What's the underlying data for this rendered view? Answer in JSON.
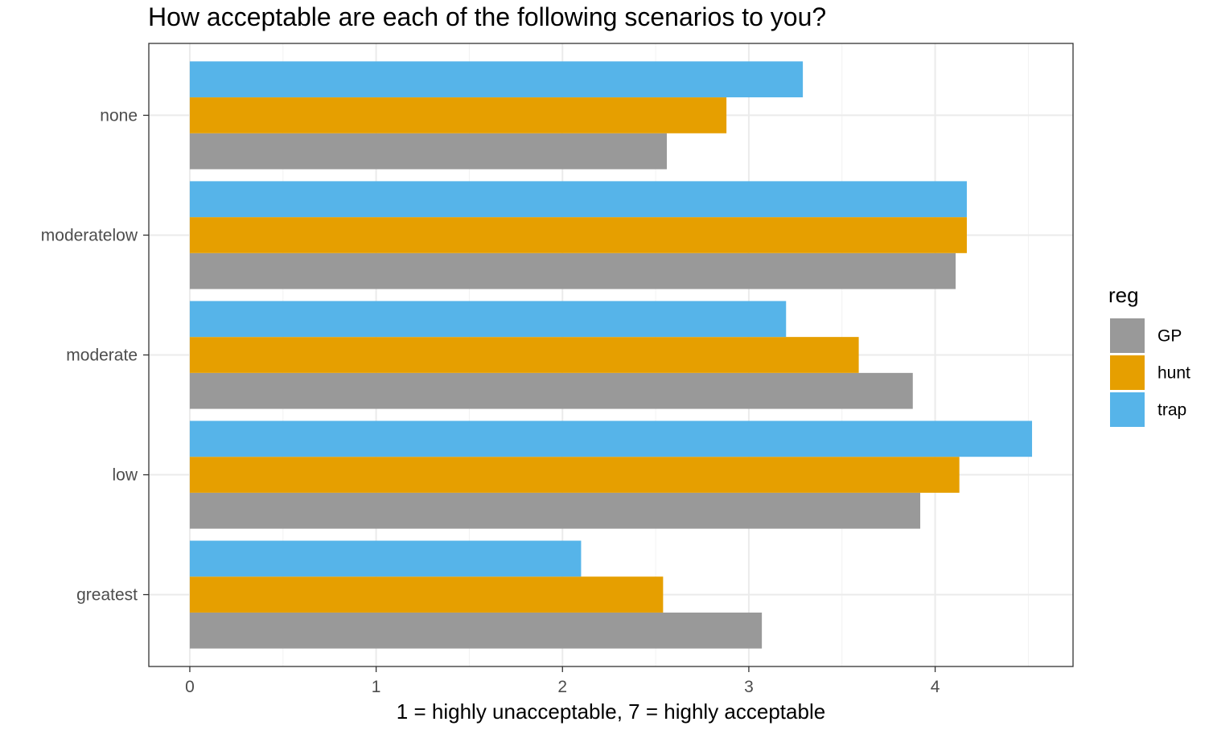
{
  "chart_data": {
    "type": "bar",
    "orientation": "horizontal",
    "title": "How acceptable are each of the following scenarios to you?",
    "xlabel": "1 = highly unacceptable, 7 = highly acceptable",
    "ylabel": "",
    "xlim": [
      -0.22,
      4.74
    ],
    "x_ticks": [
      0,
      1,
      2,
      3,
      4
    ],
    "categories": [
      "greatest",
      "low",
      "moderate",
      "moderatelow",
      "none"
    ],
    "series": [
      {
        "name": "GP",
        "color": "#999999",
        "values": [
          3.07,
          3.92,
          3.88,
          4.11,
          2.56
        ]
      },
      {
        "name": "hunt",
        "color": "#E69F00",
        "values": [
          2.54,
          4.13,
          3.59,
          4.17,
          2.88
        ]
      },
      {
        "name": "trap",
        "color": "#56B4E9",
        "values": [
          2.1,
          4.52,
          3.2,
          4.17,
          3.29
        ]
      }
    ],
    "legend": {
      "title": "reg",
      "position": "right"
    },
    "grid": true,
    "theme": "bw"
  }
}
